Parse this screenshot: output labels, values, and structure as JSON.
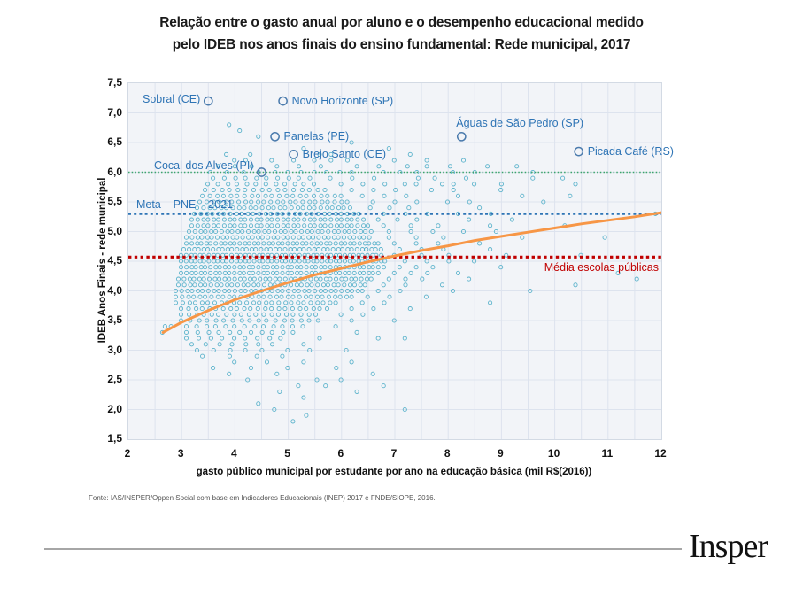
{
  "title": {
    "line1": "Relação entre o gasto anual por aluno e o desempenho educacional medido",
    "line2": "pelo IDEB nos anos finais do ensino fundamental: Rede municipal, 2017"
  },
  "source_note": "Fonte: IAS/INSPER/Oppen Social com base em Indicadores Educacionais (INEP) 2017 e FNDE/SIOPE, 2016.",
  "footer": {
    "logo_text": "Insper"
  },
  "colors": {
    "scatter": "#4BACC6",
    "highlight_circle": "#4B7BAD",
    "annotation_text": "#2E74B5",
    "trend": "#F79646",
    "green_line": "#3BA56B",
    "meta_line": "#2E75B6",
    "media_line": "#C00000",
    "grid": "#dde3ee",
    "plot_bg": "#f2f4f8"
  },
  "chart_data": {
    "type": "scatter",
    "title": "Relação entre o gasto anual por aluno e o desempenho educacional medido pelo IDEB nos anos finais do ensino fundamental: Rede municipal, 2017",
    "xlabel": "gasto público municipal por estudante por ano na educação básica (mil R$(2016))",
    "ylabel": "IDEB Anos Finais - rede municipal",
    "xlim": [
      2,
      12
    ],
    "ylim": [
      1.5,
      7.5
    ],
    "grid": true,
    "grid_step": 0.5,
    "x_ticks": [
      {
        "v": 2,
        "label": "2"
      },
      {
        "v": 3,
        "label": "3"
      },
      {
        "v": 4,
        "label": "4"
      },
      {
        "v": 5,
        "label": "5"
      },
      {
        "v": 6,
        "label": "6"
      },
      {
        "v": 7,
        "label": "7"
      },
      {
        "v": 8,
        "label": "8"
      },
      {
        "v": 9,
        "label": "9"
      },
      {
        "v": 10,
        "label": "10"
      },
      {
        "v": 11,
        "label": "11"
      },
      {
        "v": 12,
        "label": "12"
      }
    ],
    "y_ticks": [
      {
        "v": 7.5,
        "label": "7,5"
      },
      {
        "v": 7.0,
        "label": "7,0"
      },
      {
        "v": 6.5,
        "label": "6,5"
      },
      {
        "v": 6.0,
        "label": "6,0"
      },
      {
        "v": 5.5,
        "label": "5,5"
      },
      {
        "v": 5.0,
        "label": "5,0"
      },
      {
        "v": 4.5,
        "label": "4,5"
      },
      {
        "v": 4.0,
        "label": "4,0"
      },
      {
        "v": 3.5,
        "label": "3,5"
      },
      {
        "v": 3.0,
        "label": "3,0"
      },
      {
        "v": 2.5,
        "label": "2,5"
      },
      {
        "v": 2.0,
        "label": "2,0"
      },
      {
        "v": 1.5,
        "label": "1,5"
      }
    ],
    "reference_lines": [
      {
        "name": "meta-6",
        "y": 6.0,
        "color": "#3BA56B",
        "style": "fine-dotted",
        "label": ""
      },
      {
        "name": "meta-pne-2021",
        "y": 5.3,
        "color": "#2E75B6",
        "style": "dotted",
        "label": "Meta – PNE – 2021",
        "label_pos": "above-left"
      },
      {
        "name": "media-escolas-publicas",
        "y": 4.57,
        "color": "#C00000",
        "style": "heavy-dotted",
        "label": "Média escolas públicas",
        "label_pos": "below-right"
      }
    ],
    "trend_line": {
      "color": "#F79646",
      "points": [
        [
          2.65,
          3.3
        ],
        [
          3,
          3.47
        ],
        [
          3.5,
          3.67
        ],
        [
          4,
          3.85
        ],
        [
          4.5,
          4.0
        ],
        [
          5,
          4.14
        ],
        [
          5.5,
          4.27
        ],
        [
          6,
          4.38
        ],
        [
          6.5,
          4.49
        ],
        [
          7,
          4.59
        ],
        [
          7.5,
          4.68
        ],
        [
          8,
          4.76
        ],
        [
          8.5,
          4.85
        ],
        [
          9,
          4.92
        ],
        [
          9.5,
          4.99
        ],
        [
          10,
          5.06
        ],
        [
          10.5,
          5.13
        ],
        [
          11,
          5.19
        ],
        [
          11.5,
          5.25
        ],
        [
          12,
          5.32
        ]
      ]
    },
    "highlighted_points": [
      {
        "label": "Sobral (CE)",
        "x": 3.5,
        "y": 7.2,
        "label_side": "left"
      },
      {
        "label": "Novo Horizonte (SP)",
        "x": 4.9,
        "y": 7.2,
        "label_side": "right"
      },
      {
        "label": "Panelas (PE)",
        "x": 4.75,
        "y": 6.6,
        "label_side": "right"
      },
      {
        "label": "Brejo Santo (CE)",
        "x": 5.1,
        "y": 6.3,
        "label_side": "right"
      },
      {
        "label": "Cocal dos Alves (PI)",
        "x": 4.5,
        "y": 6.0,
        "label_side": "left-up"
      },
      {
        "label": "Águas de São Pedro (SP)",
        "x": 8.25,
        "y": 6.6,
        "label_side": "above"
      },
      {
        "label": "Picada Café (RS)",
        "x": 10.45,
        "y": 6.35,
        "label_side": "right"
      }
    ],
    "scatter_rows": [
      {
        "y": 6.8,
        "runs": [
          [
            3.9,
            3.9,
            1
          ]
        ]
      },
      {
        "y": 6.7,
        "runs": [
          [
            4.1,
            4.1,
            1
          ]
        ]
      },
      {
        "y": 6.6,
        "runs": [
          [
            4.45,
            4.45,
            1
          ]
        ]
      },
      {
        "y": 6.5,
        "runs": [
          [
            6.2,
            6.2,
            1
          ]
        ]
      },
      {
        "y": 6.4,
        "runs": [
          [
            5.3,
            5.3,
            1
          ],
          [
            6.9,
            6.9,
            1
          ]
        ]
      },
      {
        "y": 6.3,
        "runs": [
          [
            3.85,
            3.85,
            1
          ],
          [
            4.3,
            4.3,
            1
          ],
          [
            5.6,
            5.8,
            0.2
          ],
          [
            7.3,
            7.3,
            1
          ]
        ]
      },
      {
        "y": 6.2,
        "runs": [
          [
            4.0,
            4.2,
            0.2
          ],
          [
            4.7,
            5.1,
            0.4
          ],
          [
            5.5,
            6.1,
            0.3
          ],
          [
            7.0,
            7.6,
            0.6
          ],
          [
            8.3,
            8.3,
            1
          ]
        ]
      },
      {
        "y": 6.1,
        "runs": [
          [
            3.7,
            4.3,
            0.3
          ],
          [
            4.8,
            5.6,
            0.4
          ],
          [
            6.3,
            6.7,
            0.4
          ],
          [
            7.25,
            7.6,
            0.35
          ],
          [
            8.05,
            8.05,
            1
          ],
          [
            8.75,
            8.75,
            1
          ],
          [
            9.3,
            9.3,
            1
          ]
        ]
      },
      {
        "y": 6.0,
        "runs": [
          [
            3.55,
            4.75,
            0.3
          ],
          [
            5.0,
            6.2,
            0.24
          ],
          [
            6.8,
            7.4,
            0.3
          ],
          [
            8.1,
            8.5,
            0.4
          ],
          [
            9.6,
            9.6,
            1
          ]
        ]
      },
      {
        "y": 5.9,
        "runs": [
          [
            3.6,
            5.4,
            0.2
          ],
          [
            5.8,
            6.6,
            0.4
          ],
          [
            7.45,
            7.75,
            0.3
          ],
          [
            8.35,
            8.35,
            1
          ],
          [
            9.6,
            10.15,
            0.55
          ]
        ]
      },
      {
        "y": 5.8,
        "runs": [
          [
            3.5,
            5.6,
            0.18
          ],
          [
            6.0,
            6.8,
            0.4
          ],
          [
            7.2,
            7.4,
            0.2
          ],
          [
            7.9,
            8.1,
            0.2
          ],
          [
            8.5,
            9.0,
            0.5
          ],
          [
            10.4,
            10.4,
            1
          ]
        ]
      },
      {
        "y": 5.7,
        "runs": [
          [
            3.45,
            5.8,
            0.15
          ],
          [
            6.2,
            7.0,
            0.4
          ],
          [
            7.7,
            8.1,
            0.4
          ],
          [
            9.0,
            9.0,
            1
          ]
        ]
      },
      {
        "y": 5.6,
        "runs": [
          [
            3.4,
            6.0,
            0.13
          ],
          [
            6.4,
            7.2,
            0.4
          ],
          [
            8.2,
            8.2,
            1
          ],
          [
            9.4,
            9.4,
            1
          ],
          [
            10.3,
            10.3,
            1
          ]
        ]
      },
      {
        "y": 5.5,
        "runs": [
          [
            3.35,
            6.2,
            0.12
          ],
          [
            6.6,
            7.4,
            0.4
          ],
          [
            8.0,
            8.4,
            0.4
          ],
          [
            9.8,
            9.8,
            1
          ]
        ]
      },
      {
        "y": 5.4,
        "runs": [
          [
            3.3,
            6.2,
            0.11
          ],
          [
            6.55,
            7.25,
            0.35
          ],
          [
            8.6,
            8.6,
            1
          ]
        ]
      },
      {
        "y": 5.3,
        "runs": [
          [
            3.25,
            6.4,
            0.11
          ],
          [
            6.8,
            7.6,
            0.4
          ],
          [
            8.2,
            8.8,
            0.6
          ],
          [
            11.9,
            11.9,
            1
          ]
        ]
      },
      {
        "y": 5.2,
        "runs": [
          [
            3.2,
            6.4,
            0.1
          ],
          [
            6.7,
            7.4,
            0.35
          ],
          [
            8.4,
            9.2,
            0.8
          ]
        ]
      },
      {
        "y": 5.1,
        "runs": [
          [
            3.2,
            6.5,
            0.1
          ],
          [
            6.8,
            7.8,
            0.5
          ],
          [
            8.8,
            8.8,
            1
          ],
          [
            10.2,
            10.2,
            1
          ]
        ]
      },
      {
        "y": 5.0,
        "runs": [
          [
            3.15,
            6.6,
            0.1
          ],
          [
            6.9,
            7.7,
            0.4
          ],
          [
            8.3,
            8.9,
            0.6
          ]
        ]
      },
      {
        "y": 4.9,
        "runs": [
          [
            3.1,
            6.6,
            0.095
          ],
          [
            6.9,
            7.9,
            0.5
          ],
          [
            9.4,
            9.4,
            1
          ],
          [
            10.95,
            10.95,
            1
          ]
        ]
      },
      {
        "y": 4.8,
        "runs": [
          [
            3.1,
            6.7,
            0.09
          ],
          [
            7.0,
            7.8,
            0.4
          ],
          [
            8.6,
            8.6,
            1
          ]
        ]
      },
      {
        "y": 4.7,
        "runs": [
          [
            3.05,
            6.8,
            0.09
          ],
          [
            7.1,
            7.9,
            0.4
          ],
          [
            8.8,
            8.8,
            1
          ]
        ]
      },
      {
        "y": 4.6,
        "runs": [
          [
            3.0,
            6.8,
            0.085
          ],
          [
            7.0,
            8.0,
            0.5
          ],
          [
            9.1,
            9.1,
            1
          ],
          [
            10.5,
            10.5,
            1
          ]
        ]
      },
      {
        "y": 4.5,
        "runs": [
          [
            3.0,
            6.9,
            0.085
          ],
          [
            7.2,
            8.0,
            0.4
          ],
          [
            8.5,
            8.5,
            1
          ]
        ]
      },
      {
        "y": 4.4,
        "runs": [
          [
            3.0,
            6.8,
            0.09
          ],
          [
            7.1,
            7.7,
            0.3
          ],
          [
            9.0,
            9.0,
            1
          ]
        ]
      },
      {
        "y": 4.3,
        "runs": [
          [
            3.0,
            6.7,
            0.09
          ],
          [
            7.0,
            7.6,
            0.3
          ],
          [
            8.2,
            8.2,
            1
          ],
          [
            11.2,
            11.2,
            1
          ]
        ]
      },
      {
        "y": 4.2,
        "runs": [
          [
            2.95,
            6.6,
            0.095
          ],
          [
            6.9,
            7.5,
            0.3
          ],
          [
            8.4,
            8.4,
            1
          ],
          [
            11.55,
            11.55,
            1
          ]
        ]
      },
      {
        "y": 4.1,
        "runs": [
          [
            2.95,
            6.5,
            0.1
          ],
          [
            6.8,
            7.2,
            0.4
          ],
          [
            7.9,
            7.9,
            1
          ],
          [
            10.4,
            10.4,
            1
          ]
        ]
      },
      {
        "y": 4.0,
        "runs": [
          [
            2.9,
            6.4,
            0.1
          ],
          [
            6.7,
            7.1,
            0.4
          ],
          [
            8.1,
            8.1,
            1
          ],
          [
            9.55,
            9.55,
            1
          ]
        ]
      },
      {
        "y": 3.9,
        "runs": [
          [
            2.9,
            6.2,
            0.11
          ],
          [
            6.5,
            6.9,
            0.4
          ],
          [
            7.6,
            7.6,
            1
          ]
        ]
      },
      {
        "y": 3.8,
        "runs": [
          [
            2.9,
            6.0,
            0.12
          ],
          [
            6.4,
            6.8,
            0.4
          ],
          [
            8.8,
            8.8,
            1
          ]
        ]
      },
      {
        "y": 3.7,
        "runs": [
          [
            3.0,
            5.8,
            0.13
          ],
          [
            6.2,
            6.6,
            0.4
          ],
          [
            7.3,
            7.3,
            1
          ]
        ]
      },
      {
        "y": 3.6,
        "runs": [
          [
            3.0,
            5.6,
            0.14
          ],
          [
            6.0,
            6.4,
            0.4
          ]
        ]
      },
      {
        "y": 3.5,
        "runs": [
          [
            3.0,
            5.6,
            0.16
          ],
          [
            6.2,
            6.2,
            1
          ],
          [
            7.0,
            7.0,
            1
          ]
        ]
      },
      {
        "y": 3.4,
        "runs": [
          [
            2.7,
            2.8,
            0.1
          ],
          [
            3.1,
            5.4,
            0.18
          ],
          [
            5.9,
            5.9,
            1
          ]
        ]
      },
      {
        "y": 3.3,
        "runs": [
          [
            2.65,
            2.65,
            1
          ],
          [
            3.1,
            5.2,
            0.2
          ],
          [
            6.3,
            6.3,
            1
          ]
        ]
      },
      {
        "y": 3.2,
        "runs": [
          [
            3.1,
            5.0,
            0.22
          ],
          [
            5.6,
            5.6,
            1
          ],
          [
            6.7,
            6.7,
            1
          ],
          [
            7.2,
            7.2,
            1
          ]
        ]
      },
      {
        "y": 3.1,
        "runs": [
          [
            3.2,
            4.8,
            0.25
          ],
          [
            5.3,
            5.3,
            1
          ]
        ]
      },
      {
        "y": 3.0,
        "runs": [
          [
            3.3,
            4.6,
            0.3
          ],
          [
            5.0,
            5.4,
            0.4
          ],
          [
            6.1,
            6.1,
            1
          ]
        ]
      },
      {
        "y": 2.9,
        "runs": [
          [
            3.4,
            4.4,
            0.5
          ],
          [
            4.9,
            4.9,
            1
          ]
        ]
      },
      {
        "y": 2.8,
        "runs": [
          [
            4.0,
            4.6,
            0.6
          ],
          [
            5.3,
            5.3,
            1
          ],
          [
            6.2,
            6.2,
            1
          ]
        ]
      },
      {
        "y": 2.7,
        "runs": [
          [
            3.6,
            4.3,
            0.7
          ],
          [
            5.0,
            5.9,
            0.9
          ]
        ]
      },
      {
        "y": 2.6,
        "runs": [
          [
            3.9,
            3.9,
            1
          ],
          [
            4.8,
            4.8,
            1
          ],
          [
            6.6,
            6.6,
            1
          ]
        ]
      },
      {
        "y": 2.5,
        "runs": [
          [
            4.25,
            4.25,
            1
          ],
          [
            5.55,
            5.55,
            1
          ],
          [
            6.0,
            6.0,
            1
          ]
        ]
      },
      {
        "y": 2.4,
        "runs": [
          [
            5.2,
            5.7,
            0.5
          ],
          [
            6.8,
            6.8,
            1
          ]
        ]
      },
      {
        "y": 2.3,
        "runs": [
          [
            4.85,
            4.85,
            1
          ],
          [
            6.3,
            6.3,
            1
          ]
        ]
      },
      {
        "y": 2.2,
        "runs": [
          [
            5.3,
            5.3,
            1
          ]
        ]
      },
      {
        "y": 2.1,
        "runs": [
          [
            4.45,
            4.45,
            1
          ]
        ]
      },
      {
        "y": 2.0,
        "runs": [
          [
            4.75,
            4.75,
            1
          ],
          [
            7.2,
            7.2,
            1
          ]
        ]
      },
      {
        "y": 1.9,
        "runs": [
          [
            5.35,
            5.35,
            1
          ]
        ]
      },
      {
        "y": 1.8,
        "runs": [
          [
            5.1,
            5.1,
            1
          ]
        ]
      }
    ]
  }
}
